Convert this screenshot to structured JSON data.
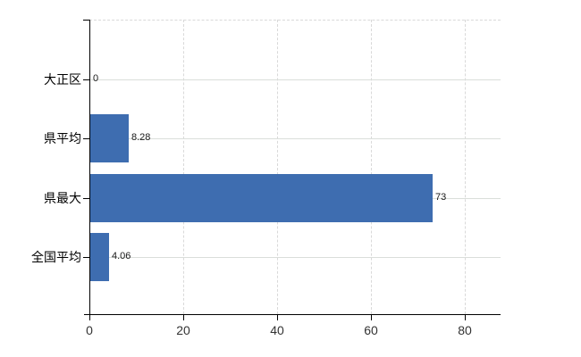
{
  "chart_data": {
    "type": "bar",
    "orientation": "horizontal",
    "title": "",
    "xlabel": "",
    "ylabel": "",
    "categories": [
      "大正区",
      "県平均",
      "県最大",
      "全国平均"
    ],
    "values": [
      0,
      8.28,
      73,
      4.06
    ],
    "value_labels": [
      "0",
      "8.28",
      "73",
      "4.06"
    ],
    "x_ticks": [
      0,
      20,
      40,
      60,
      80
    ],
    "x_tick_labels": [
      "0",
      "20",
      "40",
      "60",
      "80"
    ],
    "xlim": [
      0,
      87.6
    ],
    "legend": null,
    "grid": {
      "vertical_gridlines": "dashed at each x tick",
      "horizontal_row_lines": "solid at each category center",
      "plot_top_border": "dashed"
    },
    "colors": {
      "bar": "#3E6DB0",
      "grid": "#D9D9D9",
      "axis": "#000000",
      "category_text": "#000000",
      "value_text": "#1A1A1A",
      "tick_text": "#333333",
      "background": "#FFFFFF"
    }
  }
}
